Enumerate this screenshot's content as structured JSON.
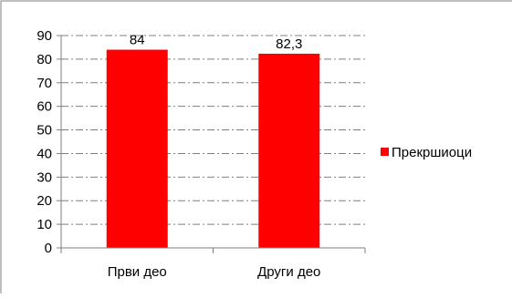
{
  "chart_data": {
    "type": "bar",
    "categories": [
      "Први део",
      "Други део"
    ],
    "series": [
      {
        "name": "Прекршиоци",
        "values": [
          84,
          82.3
        ],
        "value_labels": [
          "84",
          "82,3"
        ],
        "color": "#ff0000"
      }
    ],
    "title": "",
    "xlabel": "",
    "ylabel": "",
    "ylim": [
      0,
      90
    ],
    "yticks": [
      0,
      10,
      20,
      30,
      40,
      50,
      60,
      70,
      80,
      90
    ],
    "grid": true,
    "grid_style": "dash-dot",
    "legend_position": "right"
  },
  "colors": {
    "bar": "#ff0000",
    "grid": "#7f7f7f",
    "axis": "#7f7f7f",
    "frame": "#7f7f7f",
    "text": "#000000"
  }
}
